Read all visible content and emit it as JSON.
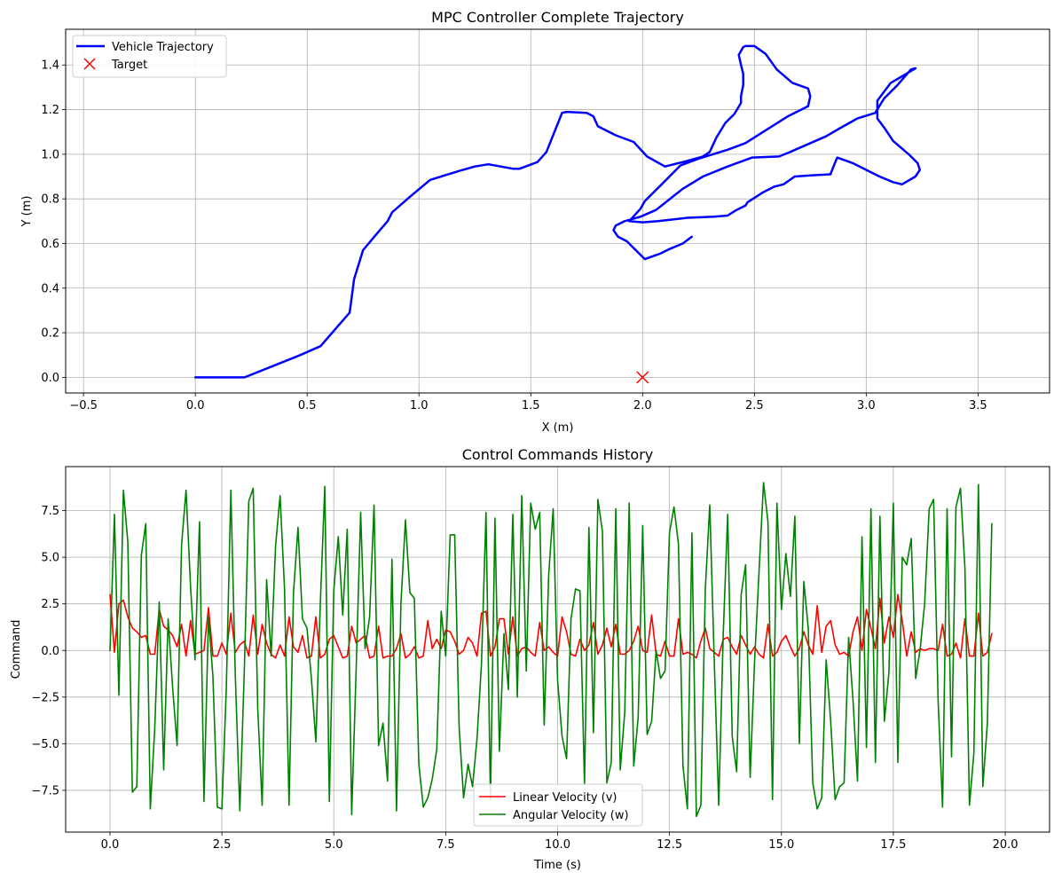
{
  "chart_data": [
    {
      "type": "line",
      "title": "MPC Controller Complete Trajectory",
      "xlabel": "X (m)",
      "ylabel": "Y (m)",
      "xlim": [
        -0.58,
        3.82
      ],
      "ylim": [
        -0.07,
        1.56
      ],
      "xticks": [
        -0.5,
        0.0,
        0.5,
        1.0,
        1.5,
        2.0,
        2.5,
        3.0,
        3.5
      ],
      "xtick_labels": [
        "−0.5",
        "0.0",
        "0.5",
        "1.0",
        "1.5",
        "2.0",
        "2.5",
        "3.0",
        "3.5"
      ],
      "yticks": [
        0.0,
        0.2,
        0.4,
        0.6,
        0.8,
        1.0,
        1.2,
        1.4
      ],
      "ytick_labels": [
        "0.0",
        "0.2",
        "0.4",
        "0.6",
        "0.8",
        "1.0",
        "1.2",
        "1.4"
      ],
      "grid": true,
      "legend": "upper-left",
      "series": [
        {
          "name": "Vehicle Trajectory",
          "color": "#0000ff",
          "kind": "line",
          "points": [
            [
              0.0,
              0.0
            ],
            [
              0.22,
              0.0
            ],
            [
              0.37,
              0.06
            ],
            [
              0.47,
              0.1
            ],
            [
              0.56,
              0.14
            ],
            [
              0.69,
              0.29
            ],
            [
              0.71,
              0.44
            ],
            [
              0.75,
              0.57
            ],
            [
              0.8,
              0.63
            ],
            [
              0.86,
              0.7
            ],
            [
              0.88,
              0.74
            ],
            [
              0.96,
              0.81
            ],
            [
              1.05,
              0.885
            ],
            [
              1.18,
              0.925
            ],
            [
              1.25,
              0.945
            ],
            [
              1.31,
              0.955
            ],
            [
              1.42,
              0.935
            ],
            [
              1.45,
              0.935
            ],
            [
              1.53,
              0.965
            ],
            [
              1.57,
              1.01
            ],
            [
              1.64,
              1.185
            ],
            [
              1.66,
              1.19
            ],
            [
              1.75,
              1.185
            ],
            [
              1.78,
              1.17
            ],
            [
              1.8,
              1.125
            ],
            [
              1.88,
              1.085
            ],
            [
              1.96,
              1.055
            ],
            [
              2.02,
              0.99
            ],
            [
              2.1,
              0.945
            ],
            [
              2.18,
              0.965
            ],
            [
              2.27,
              0.99
            ],
            [
              2.3,
              1.01
            ],
            [
              2.33,
              1.075
            ],
            [
              2.37,
              1.14
            ],
            [
              2.41,
              1.18
            ],
            [
              2.44,
              1.23
            ],
            [
              2.44,
              1.245
            ],
            [
              2.44,
              1.26
            ],
            [
              2.45,
              1.31
            ],
            [
              2.45,
              1.36
            ],
            [
              2.44,
              1.4
            ],
            [
              2.43,
              1.445
            ],
            [
              2.45,
              1.48
            ],
            [
              2.46,
              1.485
            ],
            [
              2.5,
              1.485
            ],
            [
              2.55,
              1.45
            ],
            [
              2.6,
              1.38
            ],
            [
              2.67,
              1.32
            ],
            [
              2.74,
              1.295
            ],
            [
              2.75,
              1.26
            ],
            [
              2.74,
              1.215
            ],
            [
              2.65,
              1.17
            ],
            [
              2.46,
              1.05
            ],
            [
              2.38,
              1.02
            ],
            [
              2.25,
              0.98
            ],
            [
              2.17,
              0.95
            ],
            [
              2.09,
              0.87
            ],
            [
              2.04,
              0.82
            ],
            [
              2.01,
              0.79
            ],
            [
              1.99,
              0.755
            ],
            [
              1.94,
              0.7
            ],
            [
              2.0,
              0.695
            ],
            [
              2.07,
              0.7
            ],
            [
              2.2,
              0.715
            ],
            [
              2.32,
              0.72
            ],
            [
              2.38,
              0.725
            ],
            [
              2.42,
              0.75
            ],
            [
              2.46,
              0.77
            ],
            [
              2.47,
              0.785
            ],
            [
              2.54,
              0.83
            ],
            [
              2.59,
              0.855
            ],
            [
              2.63,
              0.865
            ],
            [
              2.68,
              0.9
            ],
            [
              2.75,
              0.905
            ],
            [
              2.84,
              0.91
            ],
            [
              2.86,
              0.96
            ],
            [
              2.87,
              0.985
            ],
            [
              2.94,
              0.96
            ],
            [
              3.0,
              0.93
            ],
            [
              3.06,
              0.9
            ],
            [
              3.12,
              0.875
            ],
            [
              3.16,
              0.865
            ],
            [
              3.22,
              0.9
            ],
            [
              3.24,
              0.93
            ],
            [
              3.23,
              0.96
            ],
            [
              3.19,
              1.0
            ],
            [
              3.12,
              1.06
            ],
            [
              3.08,
              1.12
            ],
            [
              3.05,
              1.16
            ],
            [
              3.05,
              1.24
            ],
            [
              3.11,
              1.32
            ],
            [
              3.17,
              1.355
            ],
            [
              3.22,
              1.385
            ],
            [
              3.2,
              1.38
            ],
            [
              3.14,
              1.31
            ],
            [
              3.08,
              1.25
            ],
            [
              3.04,
              1.185
            ],
            [
              2.96,
              1.16
            ],
            [
              2.88,
              1.115
            ],
            [
              2.82,
              1.08
            ],
            [
              2.66,
              1.01
            ],
            [
              2.61,
              0.99
            ],
            [
              2.49,
              0.985
            ],
            [
              2.38,
              0.945
            ],
            [
              2.27,
              0.9
            ],
            [
              2.18,
              0.845
            ],
            [
              2.06,
              0.75
            ],
            [
              1.99,
              0.72
            ],
            [
              1.92,
              0.7
            ],
            [
              1.88,
              0.68
            ],
            [
              1.87,
              0.66
            ],
            [
              1.89,
              0.63
            ],
            [
              1.93,
              0.61
            ],
            [
              2.01,
              0.53
            ],
            [
              2.08,
              0.555
            ],
            [
              2.12,
              0.575
            ],
            [
              2.18,
              0.6
            ],
            [
              2.22,
              0.63
            ]
          ]
        },
        {
          "name": "Target",
          "color": "#ff0000",
          "kind": "marker",
          "points": [
            [
              2.0,
              0.0
            ]
          ]
        }
      ]
    },
    {
      "type": "line",
      "title": "Control Commands History",
      "xlabel": "Time (s)",
      "ylabel": "Command",
      "xlim": [
        -0.99,
        20.99
      ],
      "ylim": [
        -9.74,
        9.86
      ],
      "xticks": [
        0.0,
        2.5,
        5.0,
        7.5,
        10.0,
        12.5,
        15.0,
        17.5,
        20.0
      ],
      "xtick_labels": [
        "0.0",
        "2.5",
        "5.0",
        "7.5",
        "10.0",
        "12.5",
        "15.0",
        "17.5",
        "20.0"
      ],
      "yticks": [
        -7.5,
        -5.0,
        -2.5,
        0.0,
        2.5,
        5.0,
        7.5
      ],
      "ytick_labels": [
        "−7.5",
        "−5.0",
        "−2.5",
        "0.0",
        "2.5",
        "5.0",
        "7.5"
      ],
      "grid": true,
      "legend": "lower-center",
      "x_start": 0.0,
      "x_step": 0.1,
      "series": [
        {
          "name": "Linear Velocity (v)",
          "color": "#ff0000",
          "values": [
            3.0,
            -0.1,
            2.5,
            2.7,
            1.8,
            1.2,
            1.0,
            0.7,
            0.8,
            -0.2,
            -0.2,
            2.2,
            1.3,
            1.1,
            0.8,
            0.2,
            1.4,
            -0.3,
            1.6,
            -0.2,
            -0.1,
            0.0,
            2.3,
            -0.3,
            -0.3,
            0.4,
            -0.2,
            2.0,
            -0.1,
            0.3,
            0.5,
            -0.3,
            1.9,
            -0.2,
            1.4,
            0.4,
            -0.2,
            -0.4,
            0.3,
            -0.3,
            1.8,
            0.2,
            -0.1,
            0.8,
            -0.4,
            -0.3,
            1.8,
            -0.4,
            -0.2,
            0.6,
            0.8,
            0.2,
            -0.4,
            -0.3,
            1.3,
            0.4,
            0.6,
            0.8,
            -0.4,
            -0.3,
            1.3,
            -0.4,
            -0.3,
            -0.3,
            0.1,
            0.9,
            -0.4,
            -0.2,
            0.2,
            -0.4,
            -0.3,
            1.6,
            0.1,
            0.6,
            0.1,
            1.1,
            1.0,
            0.5,
            -0.2,
            0.0,
            0.7,
            0.4,
            -0.3,
            2.0,
            2.1,
            -0.3,
            0.2,
            1.7,
            1.7,
            -0.2,
            1.8,
            -0.3,
            0.1,
            0.2,
            -0.1,
            -0.3,
            1.5,
            0.0,
            0.2,
            -0.1,
            -0.3,
            1.8,
            1.0,
            -0.2,
            -0.3,
            0.6,
            0.0,
            0.3,
            1.5,
            -0.2,
            0.3,
            1.2,
            0.2,
            1.4,
            -0.2,
            -0.2,
            0.0,
            0.5,
            1.3,
            0.0,
            -0.1,
            1.9,
            -0.2,
            -0.3,
            0.5,
            -0.3,
            -0.3,
            1.7,
            -0.2,
            -0.1,
            -0.2,
            -0.4,
            0.5,
            1.2,
            0.1,
            -0.1,
            -0.3,
            0.6,
            0.7,
            0.2,
            -0.2,
            0.8,
            0.3,
            -0.2,
            0.2,
            -0.2,
            -0.4,
            1.4,
            -0.3,
            -0.1,
            0.5,
            0.8,
            0.2,
            -0.3,
            0.1,
            1.0,
            0.3,
            -0.2,
            2.4,
            -0.1,
            1.3,
            1.6,
            0.3,
            -0.2,
            -0.1,
            -0.3,
            1.0,
            1.8,
            0.0,
            2.2,
            1.2,
            0.1,
            2.8,
            0.4,
            1.8,
            0.7,
            3.0,
            1.6,
            -0.3,
            1.0,
            -0.1,
            0.1,
            0.0,
            0.1,
            0.1,
            0.0,
            1.4,
            -0.3,
            -0.2,
            0.4,
            -0.4,
            1.7,
            -0.3,
            -0.3,
            2.0,
            -0.3,
            -0.1,
            0.9
          ]
        },
        {
          "name": "Angular Velocity (w)",
          "color": "#008000",
          "values": [
            0.0,
            7.3,
            -2.4,
            8.6,
            5.8,
            -7.6,
            -7.3,
            5.1,
            6.8,
            -8.5,
            -4.2,
            2.6,
            -6.4,
            1.7,
            -2.0,
            -5.1,
            5.7,
            8.6,
            3.4,
            -0.5,
            6.9,
            -8.1,
            1.8,
            -1.4,
            -8.4,
            -8.5,
            -2.0,
            8.6,
            -1.3,
            -8.6,
            -1.2,
            8.0,
            8.7,
            -3.1,
            -8.3,
            3.8,
            -0.3,
            5.6,
            8.3,
            3.3,
            -8.3,
            3.1,
            6.6,
            1.7,
            1.2,
            -1.5,
            -4.9,
            2.6,
            8.8,
            -8.1,
            3.2,
            6.1,
            1.9,
            6.5,
            -8.8,
            -0.9,
            7.4,
            0.1,
            1.8,
            7.8,
            -5.1,
            -3.9,
            -7.0,
            4.9,
            -8.6,
            2.5,
            7.0,
            3.1,
            2.8,
            -6.1,
            -8.4,
            -7.9,
            -6.9,
            -5.3,
            2.1,
            -0.3,
            6.2,
            6.2,
            -4.1,
            -7.9,
            -6.1,
            -7.3,
            -4.7,
            -0.7,
            7.4,
            -8.0,
            7.1,
            -5.4,
            0.9,
            -2.1,
            7.3,
            -2.5,
            8.3,
            -1.1,
            7.9,
            6.5,
            7.4,
            -4.0,
            4.0,
            7.6,
            -1.6,
            -4.6,
            -5.8,
            1.7,
            3.3,
            3.2,
            -7.2,
            6.6,
            -4.4,
            8.1,
            6.4,
            -7.1,
            -6.0,
            7.6,
            -6.4,
            -3.3,
            7.9,
            -6.2,
            -3.6,
            6.7,
            -4.5,
            -3.8,
            0.0,
            -1.5,
            -1.1,
            6.3,
            7.7,
            5.7,
            -6.2,
            -8.5,
            6.3,
            -8.9,
            -8.3,
            3.3,
            7.8,
            -0.6,
            -8.3,
            0.9,
            7.3,
            -4.6,
            -6.5,
            3.0,
            4.6,
            -6.8,
            -0.6,
            4.2,
            9.0,
            6.9,
            -8.0,
            7.9,
            2.2,
            5.2,
            2.9,
            7.2,
            -5.0,
            3.7,
            1.2,
            -7.1,
            -8.5,
            -7.9,
            -0.5,
            -3.8,
            -8.0,
            -7.3,
            -7.1,
            0.7,
            -2.7,
            -7.0,
            6.1,
            -5.2,
            7.6,
            -6.0,
            7.2,
            -3.8,
            -1.2,
            7.9,
            -6.0,
            5.0,
            4.6,
            6.0,
            -1.5,
            0.1,
            2.5,
            7.6,
            8.1,
            -2.7,
            -8.4,
            7.6,
            -5.7,
            7.7,
            8.7,
            4.4,
            -8.3,
            -5.5,
            8.9,
            -7.3,
            -3.9,
            6.8
          ]
        }
      ]
    }
  ]
}
